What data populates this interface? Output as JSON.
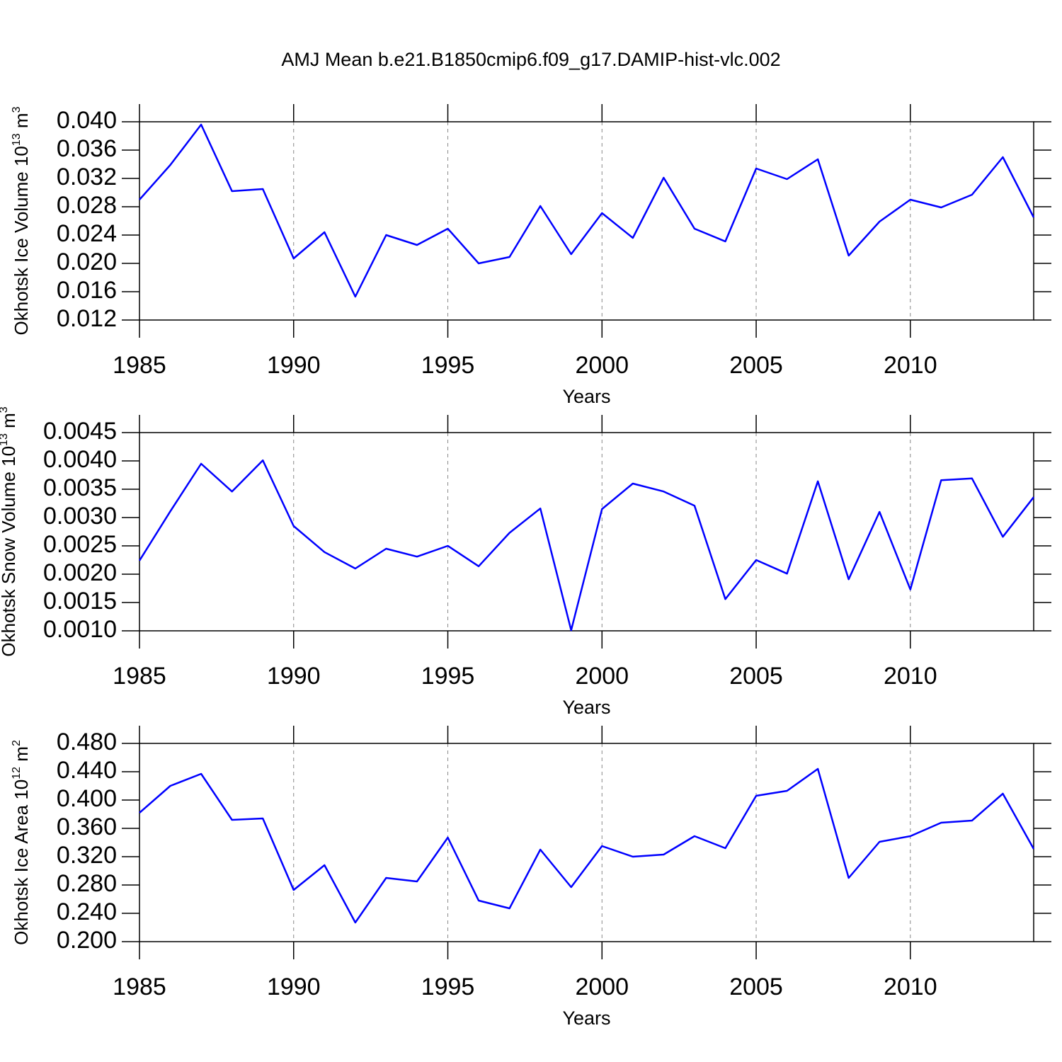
{
  "chart_data": [
    {
      "type": "line",
      "title": "AMJ Mean b.e21.B1850cmip6.f09_g17.DAMIP-hist-vlc.002",
      "ylabel": [
        "Okhotsk Ice Volume 10",
        "13",
        " m",
        "3"
      ],
      "xlabel": "Years",
      "x": [
        1985,
        1986,
        1987,
        1988,
        1989,
        1990,
        1991,
        1992,
        1993,
        1994,
        1995,
        1996,
        1997,
        1998,
        1999,
        2000,
        2001,
        2002,
        2003,
        2004,
        2005,
        2006,
        2007,
        2008,
        2009,
        2010,
        2011,
        2012,
        2013,
        2014
      ],
      "series": [
        {
          "color": "#0000ff",
          "values": [
            0.029,
            0.0339,
            0.0396,
            0.0302,
            0.0305,
            0.0207,
            0.0244,
            0.0153,
            0.024,
            0.0226,
            0.0249,
            0.02,
            0.0209,
            0.0281,
            0.0213,
            0.0271,
            0.0236,
            0.0321,
            0.0249,
            0.0231,
            0.0334,
            0.0319,
            0.0347,
            0.0211,
            0.0259,
            0.029,
            0.0279,
            0.0297,
            0.035,
            0.0265
          ]
        }
      ],
      "xlim": [
        1985,
        2014
      ],
      "xticks": [
        1985,
        1990,
        1995,
        2000,
        2005,
        2010
      ],
      "ylim": [
        0.012,
        0.04
      ],
      "yticks": [
        {
          "value": 0.012,
          "label": "0.012"
        },
        0.016,
        {
          "value": 0.02,
          "label": "0.020"
        },
        0.024,
        0.028,
        0.032,
        0.036,
        {
          "value": 0.04,
          "label": "0.040"
        }
      ],
      "grid": "x-dashed"
    },
    {
      "type": "line",
      "ylabel": [
        "Okhotsk Snow Volume 10",
        "13",
        " m",
        "3"
      ],
      "xlabel": "Years",
      "x": [
        1985,
        1986,
        1987,
        1988,
        1989,
        1990,
        1991,
        1992,
        1993,
        1994,
        1995,
        1996,
        1997,
        1998,
        1999,
        2000,
        2001,
        2002,
        2003,
        2004,
        2005,
        2006,
        2007,
        2008,
        2009,
        2010,
        2011,
        2012,
        2013,
        2014
      ],
      "series": [
        {
          "color": "#0000ff",
          "values": [
            0.00224,
            0.00311,
            0.00395,
            0.00346,
            0.00401,
            0.00285,
            0.00239,
            0.0021,
            0.00245,
            0.00231,
            0.0025,
            0.00214,
            0.00273,
            0.00316,
            0.00101,
            0.00315,
            0.0036,
            0.00346,
            0.00321,
            0.00156,
            0.00225,
            0.00201,
            0.00364,
            0.00191,
            0.0031,
            0.00173,
            0.00366,
            0.00369,
            0.00266,
            0.00336
          ]
        }
      ],
      "xlim": [
        1985,
        2014
      ],
      "xticks": [
        1985,
        1990,
        1995,
        2000,
        2005,
        2010
      ],
      "ylim": [
        0.001,
        0.0045
      ],
      "yticks": [
        {
          "value": 0.001,
          "label": "0.0010"
        },
        0.0015,
        {
          "value": 0.002,
          "label": "0.0020"
        },
        0.0025,
        {
          "value": 0.003,
          "label": "0.0030"
        },
        0.0035,
        {
          "value": 0.004,
          "label": "0.0040"
        },
        0.0045
      ],
      "grid": "x-dashed"
    },
    {
      "type": "line",
      "ylabel": [
        "Okhotsk Ice Area 10",
        "12",
        " m",
        "2"
      ],
      "xlabel": "Years",
      "x": [
        1985,
        1986,
        1987,
        1988,
        1989,
        1990,
        1991,
        1992,
        1993,
        1994,
        1995,
        1996,
        1997,
        1998,
        1999,
        2000,
        2001,
        2002,
        2003,
        2004,
        2005,
        2006,
        2007,
        2008,
        2009,
        2010,
        2011,
        2012,
        2013,
        2014
      ],
      "series": [
        {
          "color": "#0000ff",
          "values": [
            0.382,
            0.42,
            0.437,
            0.372,
            0.374,
            0.273,
            0.308,
            0.227,
            0.29,
            0.285,
            0.347,
            0.258,
            0.247,
            0.33,
            0.277,
            0.335,
            0.32,
            0.323,
            0.349,
            0.332,
            0.406,
            0.413,
            0.444,
            0.29,
            0.341,
            0.349,
            0.368,
            0.371,
            0.409,
            0.331
          ]
        }
      ],
      "xlim": [
        1985,
        2014
      ],
      "xticks": [
        1985,
        1990,
        1995,
        2000,
        2005,
        2010
      ],
      "ylim": [
        0.2,
        0.48
      ],
      "yticks": [
        {
          "value": 0.2,
          "label": "0.200"
        },
        {
          "value": 0.24,
          "label": "0.240"
        },
        {
          "value": 0.28,
          "label": "0.280"
        },
        {
          "value": 0.32,
          "label": "0.320"
        },
        {
          "value": 0.36,
          "label": "0.360"
        },
        {
          "value": 0.4,
          "label": "0.400"
        },
        {
          "value": 0.44,
          "label": "0.440"
        },
        {
          "value": 0.48,
          "label": "0.480"
        }
      ],
      "grid": "x-dashed"
    }
  ]
}
